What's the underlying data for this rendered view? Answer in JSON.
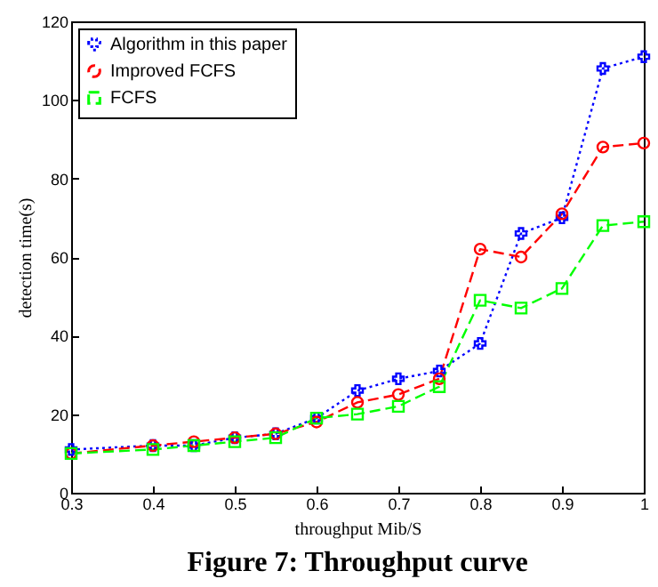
{
  "chart_data": {
    "type": "line",
    "title": "Figure 7: Throughput curve",
    "xlabel": "throughput Mib/S",
    "ylabel": "detection time(s)",
    "x": [
      0.3,
      0.4,
      0.45,
      0.5,
      0.55,
      0.6,
      0.65,
      0.7,
      0.75,
      0.8,
      0.85,
      0.9,
      0.95,
      1
    ],
    "series": [
      {
        "name": "Algorithm in this paper",
        "color": "#0000ff",
        "marker": "cross",
        "line_style": "dotted",
        "values": [
          11,
          12,
          12,
          14,
          15,
          19,
          26,
          29,
          31,
          38,
          66,
          70,
          108,
          111
        ]
      },
      {
        "name": "Improved FCFS",
        "color": "#ff0000",
        "marker": "circle",
        "line_style": "dashed",
        "values": [
          10,
          12,
          13,
          14,
          15,
          18,
          23,
          25,
          29,
          62,
          60,
          71,
          88,
          89
        ]
      },
      {
        "name": "FCFS",
        "color": "#00ff00",
        "marker": "square",
        "line_style": "dashed",
        "values": [
          10,
          11,
          12,
          13,
          14,
          19,
          20,
          22,
          27,
          49,
          47,
          52,
          68,
          69
        ]
      }
    ],
    "xlim": [
      0.3,
      1
    ],
    "xticks": [
      0.3,
      0.4,
      0.5,
      0.6,
      0.7,
      0.8,
      0.9,
      {
        "value": 1,
        "label": "1"
      }
    ],
    "ylim": [
      0,
      120
    ],
    "yticks": [
      0,
      20,
      40,
      60,
      80,
      100,
      120
    ],
    "grid": false,
    "legend": "top left"
  }
}
